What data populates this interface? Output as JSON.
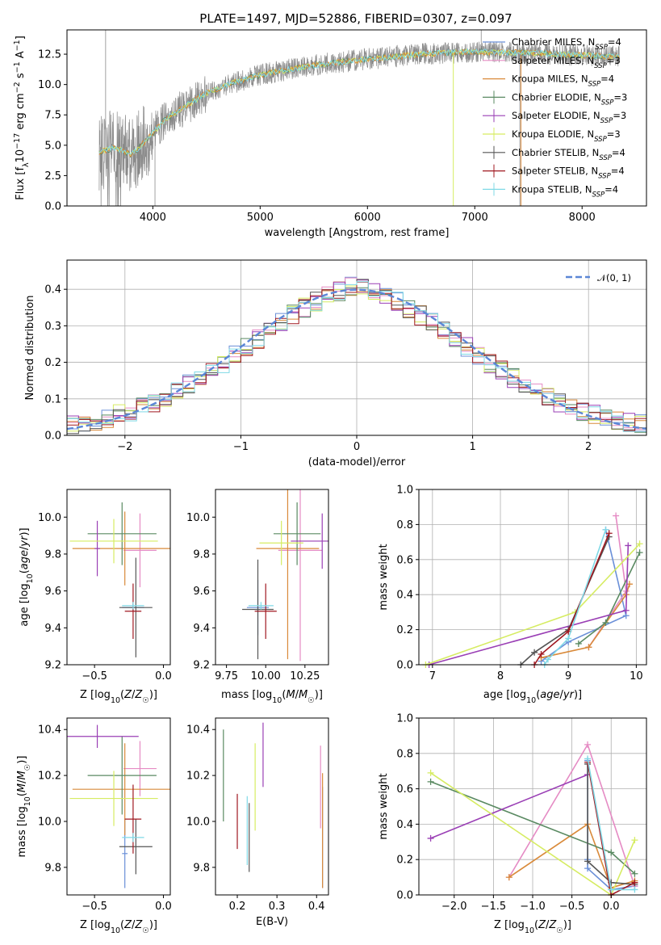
{
  "colors": {
    "Chabrier MILES": "#6a8fd8",
    "Salpeter MILES": "#e58bc4",
    "Kroupa MILES": "#d98a3a",
    "Chabrier ELODIE": "#5a8a62",
    "Salpeter ELODIE": "#9a3fb5",
    "Kroupa ELODIE": "#d6ec62",
    "Chabrier STELIB": "#555555",
    "Salpeter STELIB": "#a01820",
    "Kroupa STELIB": "#7fd9e6"
  },
  "legend_entries": [
    {
      "key": "Chabrier MILES",
      "label": "Chabrier MILES, N",
      "sub": "SSP",
      "tail": "=4"
    },
    {
      "key": "Salpeter MILES",
      "label": "Salpeter MILES, N",
      "sub": "SSP",
      "tail": "=3"
    },
    {
      "key": "Kroupa MILES",
      "label": "Kroupa MILES, N",
      "sub": "SSP",
      "tail": "=4"
    },
    {
      "key": "Chabrier ELODIE",
      "label": "Chabrier ELODIE, N",
      "sub": "SSP",
      "tail": "=3"
    },
    {
      "key": "Salpeter ELODIE",
      "label": "Salpeter ELODIE, N",
      "sub": "SSP",
      "tail": "=3"
    },
    {
      "key": "Kroupa ELODIE",
      "label": "Kroupa ELODIE, N",
      "sub": "SSP",
      "tail": "=3"
    },
    {
      "key": "Chabrier STELIB",
      "label": "Chabrier STELIB, N",
      "sub": "SSP",
      "tail": "=4"
    },
    {
      "key": "Salpeter STELIB",
      "label": "Salpeter STELIB, N",
      "sub": "SSP",
      "tail": "=4"
    },
    {
      "key": "Kroupa STELIB",
      "label": "Kroupa STELIB, N",
      "sub": "SSP",
      "tail": "=4"
    }
  ],
  "chart_data": [
    {
      "id": "spectrum",
      "type": "line",
      "title": "PLATE=1497, MJD=52886, FIBERID=0307, z=0.097",
      "xlabel": "wavelength [Angstrom, rest frame]",
      "ylabel": "Flux [fλ10⁻¹⁷ erg cm⁻² s⁻¹ A⁻¹]",
      "xlim": [
        3200,
        8600
      ],
      "ylim": [
        0,
        14.5
      ],
      "xticks": [
        4000,
        5000,
        6000,
        7000,
        8000
      ],
      "yticks": [
        0.0,
        2.5,
        5.0,
        7.5,
        10.0,
        12.5
      ],
      "data_range": [
        3500,
        8350
      ],
      "continuum": [
        [
          3500,
          4.4
        ],
        [
          3650,
          4.8
        ],
        [
          3800,
          4.2
        ],
        [
          3950,
          5.5
        ],
        [
          4100,
          7.0
        ],
        [
          4300,
          8.2
        ],
        [
          4500,
          9.3
        ],
        [
          4700,
          10.0
        ],
        [
          5000,
          10.8
        ],
        [
          5300,
          11.3
        ],
        [
          5600,
          11.7
        ],
        [
          6000,
          12.1
        ],
        [
          6500,
          12.5
        ],
        [
          7000,
          12.7
        ],
        [
          7500,
          12.6
        ],
        [
          8000,
          12.4
        ],
        [
          8350,
          12.3
        ]
      ],
      "legend_position": "upper-right"
    },
    {
      "id": "residuals",
      "type": "histogram",
      "xlabel": "(data-model)/error",
      "ylabel": "Normed distribution",
      "xlim": [
        -2.5,
        2.5
      ],
      "ylim": [
        0,
        0.48
      ],
      "xticks": [
        -2,
        -1,
        0,
        1,
        2
      ],
      "yticks": [
        0.0,
        0.1,
        0.2,
        0.3,
        0.4
      ],
      "bin_width": 0.1,
      "reference_curve": "N(0,1)",
      "legend_label": "𝒩(0, 1)",
      "legend_position": "upper-right",
      "grid": true
    },
    {
      "id": "age-vs-Z",
      "type": "errorbar",
      "xlabel": "Z [log10(Z/Z☉)]",
      "ylabel": "age  [log10(age/yr)]",
      "xlim": [
        -0.7,
        0.05
      ],
      "ylim": [
        9.2,
        10.15
      ],
      "xticks": [
        -0.5,
        0.0
      ],
      "yticks": [
        9.2,
        9.4,
        9.6,
        9.8,
        10.0
      ],
      "points": [
        {
          "key": "Chabrier MILES",
          "x": -0.22,
          "xerr": 0.08,
          "y": 9.51,
          "yerr": 0.02
        },
        {
          "key": "Salpeter MILES",
          "x": -0.17,
          "xerr": 0.12,
          "y": 9.82,
          "yerr": 0.2
        },
        {
          "key": "Kroupa MILES",
          "x": -0.28,
          "xerr": 0.38,
          "y": 9.83,
          "yerr": 0.2
        },
        {
          "key": "Chabrier ELODIE",
          "x": -0.3,
          "xerr": 0.25,
          "y": 9.91,
          "yerr": 0.17
        },
        {
          "key": "Salpeter ELODIE",
          "x": -0.48,
          "xerr": 0.02,
          "y": 9.83,
          "yerr": 0.15
        },
        {
          "key": "Kroupa ELODIE",
          "x": -0.36,
          "xerr": 0.32,
          "y": 9.87,
          "yerr": 0.12
        },
        {
          "key": "Chabrier STELIB",
          "x": -0.2,
          "xerr": 0.12,
          "y": 9.51,
          "yerr": 0.27
        },
        {
          "key": "Salpeter STELIB",
          "x": -0.22,
          "xerr": 0.06,
          "y": 9.49,
          "yerr": 0.15
        },
        {
          "key": "Kroupa STELIB",
          "x": -0.22,
          "xerr": 0.08,
          "y": 9.52,
          "yerr": 0.02
        }
      ]
    },
    {
      "id": "age-vs-mass",
      "type": "errorbar",
      "xlabel": "mass [log10(M/M☉)]",
      "ylabel": "",
      "xlim": [
        9.68,
        10.4
      ],
      "ylim": [
        9.2,
        10.15
      ],
      "xticks": [
        9.75,
        10.0,
        10.25
      ],
      "yticks": [
        9.2,
        9.4,
        9.6,
        9.8,
        10.0
      ],
      "points": [
        {
          "key": "Chabrier MILES",
          "x": 9.95,
          "xerr": 0.07,
          "y": 9.51,
          "yerr": 0.15
        },
        {
          "key": "Salpeter MILES",
          "x": 10.22,
          "xerr": 0.14,
          "y": 9.82,
          "yerr": 0.6
        },
        {
          "key": "Kroupa MILES",
          "x": 10.14,
          "xerr": 0.2,
          "y": 9.83,
          "yerr": 0.6
        },
        {
          "key": "Chabrier ELODIE",
          "x": 10.2,
          "xerr": 0.15,
          "y": 9.91,
          "yerr": 0.17
        },
        {
          "key": "Salpeter ELODIE",
          "x": 10.36,
          "xerr": 0.2,
          "y": 9.87,
          "yerr": 0.15
        },
        {
          "key": "Kroupa ELODIE",
          "x": 10.1,
          "xerr": 0.14,
          "y": 9.86,
          "yerr": 0.12
        },
        {
          "key": "Chabrier STELIB",
          "x": 9.95,
          "xerr": 0.1,
          "y": 9.5,
          "yerr": 0.27
        },
        {
          "key": "Salpeter STELIB",
          "x": 10.0,
          "xerr": 0.07,
          "y": 9.49,
          "yerr": 0.15
        },
        {
          "key": "Kroupa STELIB",
          "x": 9.97,
          "xerr": 0.08,
          "y": 9.52,
          "yerr": 0.02
        }
      ]
    },
    {
      "id": "massweight-vs-age",
      "type": "line",
      "xlabel": "age  [log10(age/yr)]",
      "ylabel": "mass weight",
      "xlim": [
        6.8,
        10.15
      ],
      "ylim": [
        0,
        1
      ],
      "xticks": [
        7,
        8,
        9,
        10
      ],
      "yticks": [
        0.0,
        0.2,
        0.4,
        0.6,
        0.8,
        1.0
      ],
      "grid": true,
      "series": [
        {
          "key": "Chabrier MILES",
          "x": [
            8.6,
            9.0,
            9.85,
            9.55
          ],
          "y": [
            0.02,
            0.13,
            0.28,
            0.77
          ]
        },
        {
          "key": "Salpeter MILES",
          "x": [
            9.3,
            9.85,
            9.7
          ],
          "y": [
            0.1,
            0.42,
            0.85
          ]
        },
        {
          "key": "Kroupa MILES",
          "x": [
            8.6,
            9.3,
            9.85,
            9.9
          ],
          "y": [
            0.04,
            0.1,
            0.4,
            0.46
          ]
        },
        {
          "key": "Chabrier ELODIE",
          "x": [
            9.15,
            9.55,
            10.05
          ],
          "y": [
            0.12,
            0.24,
            0.64
          ]
        },
        {
          "key": "Salpeter ELODIE",
          "x": [
            6.95,
            9.85,
            9.88
          ],
          "y": [
            0.0,
            0.31,
            0.68
          ]
        },
        {
          "key": "Kroupa ELODIE",
          "x": [
            6.9,
            9.1,
            10.05
          ],
          "y": [
            0.0,
            0.3,
            0.69
          ]
        },
        {
          "key": "Chabrier STELIB",
          "x": [
            8.3,
            8.5,
            9.0,
            9.6
          ],
          "y": [
            0.0,
            0.07,
            0.2,
            0.73
          ]
        },
        {
          "key": "Salpeter STELIB",
          "x": [
            8.5,
            8.6,
            9.0,
            9.6
          ],
          "y": [
            0.0,
            0.06,
            0.19,
            0.75
          ]
        },
        {
          "key": "Kroupa STELIB",
          "x": [
            8.65,
            8.7,
            9.0,
            9.55
          ],
          "y": [
            0.0,
            0.03,
            0.15,
            0.77
          ]
        }
      ]
    },
    {
      "id": "mass-vs-Z",
      "type": "errorbar",
      "xlabel": "Z [log10(Z/Z☉)]",
      "ylabel": "mass [log10(M/M☉)]",
      "xlim": [
        -0.7,
        0.05
      ],
      "ylim": [
        9.68,
        10.45
      ],
      "xticks": [
        -0.5,
        0.0
      ],
      "yticks": [
        9.8,
        10.0,
        10.2,
        10.4
      ],
      "points": [
        {
          "key": "Chabrier MILES",
          "x": -0.28,
          "xerr": 0.02,
          "y": 9.86,
          "yerr": 0.15
        },
        {
          "key": "Salpeter MILES",
          "x": -0.17,
          "xerr": 0.12,
          "y": 10.23,
          "yerr": 0.12
        },
        {
          "key": "Kroupa MILES",
          "x": -0.28,
          "xerr": 0.38,
          "y": 10.14,
          "yerr": 0.2
        },
        {
          "key": "Chabrier ELODIE",
          "x": -0.3,
          "xerr": 0.25,
          "y": 10.2,
          "yerr": 0.17
        },
        {
          "key": "Salpeter ELODIE",
          "x": -0.48,
          "xerr": 0.3,
          "y": 10.37,
          "yerr": 0.05
        },
        {
          "key": "Kroupa ELODIE",
          "x": -0.36,
          "xerr": 0.32,
          "y": 10.1,
          "yerr": 0.12
        },
        {
          "key": "Chabrier STELIB",
          "x": -0.2,
          "xerr": 0.12,
          "y": 9.89,
          "yerr": 0.12
        },
        {
          "key": "Salpeter STELIB",
          "x": -0.22,
          "xerr": 0.06,
          "y": 10.01,
          "yerr": 0.15
        },
        {
          "key": "Kroupa STELIB",
          "x": -0.22,
          "xerr": 0.08,
          "y": 9.93,
          "yerr": 0.02
        }
      ]
    },
    {
      "id": "mass-vs-EBV",
      "type": "errorbar",
      "xlabel": "E(B-V)",
      "ylabel": "",
      "xlim": [
        0.145,
        0.43
      ],
      "ylim": [
        9.68,
        10.45
      ],
      "xticks": [
        0.2,
        0.3,
        0.4
      ],
      "yticks": [
        9.8,
        10.0,
        10.2,
        10.4
      ],
      "points": [
        {
          "key": "Chabrier MILES",
          "x": 0.415,
          "xerr": 0.0,
          "y": 9.93,
          "yerr": 0.22
        },
        {
          "key": "Salpeter MILES",
          "x": 0.41,
          "xerr": 0.0,
          "y": 10.15,
          "yerr": 0.18
        },
        {
          "key": "Kroupa MILES",
          "x": 0.415,
          "xerr": 0.0,
          "y": 9.96,
          "yerr": 0.25
        },
        {
          "key": "Chabrier ELODIE",
          "x": 0.165,
          "xerr": 0.0,
          "y": 10.2,
          "yerr": 0.2
        },
        {
          "key": "Salpeter ELODIE",
          "x": 0.265,
          "xerr": 0.0,
          "y": 10.29,
          "yerr": 0.14
        },
        {
          "key": "Kroupa ELODIE",
          "x": 0.245,
          "xerr": 0.0,
          "y": 10.15,
          "yerr": 0.19
        },
        {
          "key": "Chabrier STELIB",
          "x": 0.23,
          "xerr": 0.0,
          "y": 9.93,
          "yerr": 0.15
        },
        {
          "key": "Salpeter STELIB",
          "x": 0.2,
          "xerr": 0.0,
          "y": 10.0,
          "yerr": 0.12
        },
        {
          "key": "Kroupa STELIB",
          "x": 0.225,
          "xerr": 0.0,
          "y": 9.96,
          "yerr": 0.15
        }
      ]
    },
    {
      "id": "massweight-vs-Z",
      "type": "line",
      "xlabel": "Z [log10(Z/Z☉)]",
      "ylabel": "mass weight",
      "xlim": [
        -2.45,
        0.45
      ],
      "ylim": [
        0,
        1
      ],
      "xticks": [
        -2.0,
        -1.5,
        -1.0,
        -0.5,
        0.0
      ],
      "yticks": [
        0.0,
        0.2,
        0.4,
        0.6,
        0.8,
        1.0
      ],
      "grid": true,
      "series": [
        {
          "key": "Chabrier MILES",
          "x": [
            -0.3,
            -0.3,
            -0.3,
            0.0,
            0.3
          ],
          "y": [
            0.76,
            0.2,
            0.15,
            0.03,
            0.05
          ]
        },
        {
          "key": "Salpeter MILES",
          "x": [
            -1.3,
            -0.3,
            0.3
          ],
          "y": [
            0.1,
            0.85,
            0.05
          ]
        },
        {
          "key": "Kroupa MILES",
          "x": [
            -1.3,
            -0.3,
            0.0,
            0.3
          ],
          "y": [
            0.1,
            0.4,
            0.04,
            0.08
          ]
        },
        {
          "key": "Chabrier ELODIE",
          "x": [
            -2.3,
            0.0,
            0.3
          ],
          "y": [
            0.64,
            0.24,
            0.12
          ]
        },
        {
          "key": "Salpeter ELODIE",
          "x": [
            -2.3,
            -0.3
          ],
          "y": [
            0.32,
            0.68
          ]
        },
        {
          "key": "Kroupa ELODIE",
          "x": [
            -2.3,
            0.0,
            0.3
          ],
          "y": [
            0.69,
            0.0,
            0.31
          ]
        },
        {
          "key": "Chabrier STELIB",
          "x": [
            -0.3,
            -0.3,
            0.0,
            0.3
          ],
          "y": [
            0.74,
            0.19,
            0.07,
            0.06
          ]
        },
        {
          "key": "Salpeter STELIB",
          "x": [
            -0.3,
            0.0,
            0.3
          ],
          "y": [
            0.75,
            0.0,
            0.07
          ]
        },
        {
          "key": "Kroupa STELIB",
          "x": [
            -0.3,
            0.0,
            0.3
          ],
          "y": [
            0.77,
            0.03,
            0.03
          ]
        }
      ]
    }
  ]
}
